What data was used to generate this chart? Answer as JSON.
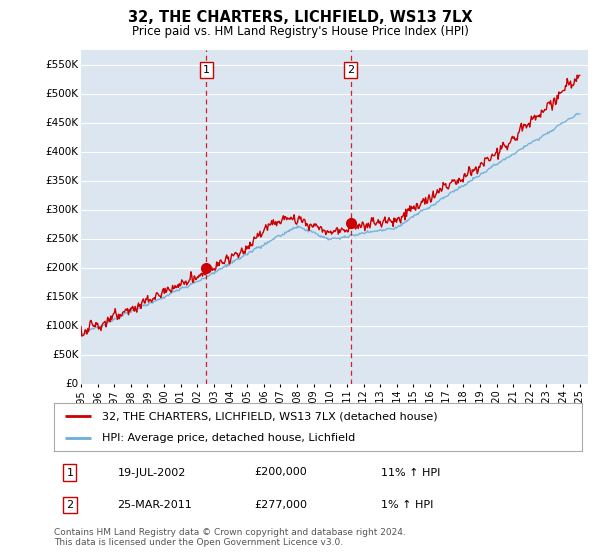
{
  "title": "32, THE CHARTERS, LICHFIELD, WS13 7LX",
  "subtitle": "Price paid vs. HM Land Registry's House Price Index (HPI)",
  "ylim": [
    0,
    575000
  ],
  "yticks": [
    0,
    50000,
    100000,
    150000,
    200000,
    250000,
    300000,
    350000,
    400000,
    450000,
    500000,
    550000
  ],
  "ytick_labels": [
    "£0",
    "£50K",
    "£100K",
    "£150K",
    "£200K",
    "£250K",
    "£300K",
    "£350K",
    "£400K",
    "£450K",
    "£500K",
    "£550K"
  ],
  "background_color": "#ffffff",
  "plot_bg_color": "#dce6f1",
  "grid_color": "#ffffff",
  "transaction1_date": 2002.54,
  "transaction1_price": 200000,
  "transaction2_date": 2011.23,
  "transaction2_price": 277000,
  "legend1": "32, THE CHARTERS, LICHFIELD, WS13 7LX (detached house)",
  "legend2": "HPI: Average price, detached house, Lichfield",
  "table_row1": [
    "1",
    "19-JUL-2002",
    "£200,000",
    "11% ↑ HPI"
  ],
  "table_row2": [
    "2",
    "25-MAR-2011",
    "£277,000",
    "1% ↑ HPI"
  ],
  "footer": "Contains HM Land Registry data © Crown copyright and database right 2024.\nThis data is licensed under the Open Government Licence v3.0.",
  "hpi_color": "#6baed6",
  "price_color": "#cc0000",
  "vline_color": "#cc0000",
  "xmin": 1995,
  "xmax": 2025.5
}
